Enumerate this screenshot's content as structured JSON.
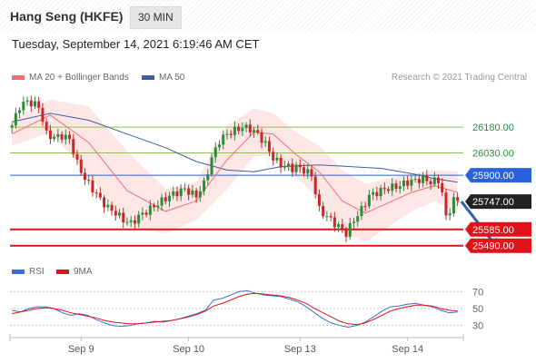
{
  "header": {
    "instrument": "Hang Seng (HKFE)",
    "timeframe": "30 MIN",
    "timestamp": "Tuesday, September 14, 2021 6:19:46 AM CET"
  },
  "legend": {
    "ma20_label": "MA 20 + Bollinger Bands",
    "ma50_label": "MA 50",
    "rsi_label": "RSI",
    "rsi_ma_label": "9MA",
    "credit": "Research © 2021 Trading Central"
  },
  "colors": {
    "ma20": "#ef6f6f",
    "bb_band": "#fde6e6",
    "ma50": "#3f5f9f",
    "candle_up": "#2e8b3d",
    "candle_down": "#c62828",
    "pivot": "#2962d9",
    "support": "#e0121a",
    "resistance": "#8bc34a",
    "last_price": "#222222",
    "rsi": "#3b6fd6",
    "rsi_ma": "#e0121a",
    "arrow": "#2a62b3"
  },
  "chart_data": [
    {
      "type": "candlestick",
      "title": "Hang Seng (HKFE) 30 MIN",
      "x_labels": [
        "Sep 9",
        "Sep 10",
        "Sep 13",
        "Sep 14"
      ],
      "ylim": [
        25420,
        26360
      ],
      "levels": [
        {
          "value": 26180.0,
          "label": "26180.00",
          "role": "resistance"
        },
        {
          "value": 26030.0,
          "label": "26030.00",
          "role": "resistance"
        },
        {
          "value": 25900.0,
          "label": "25900.00",
          "role": "pivot"
        },
        {
          "value": 25747.0,
          "label": "25747.00",
          "role": "last"
        },
        {
          "value": 25585.0,
          "label": "25585.00",
          "role": "support"
        },
        {
          "value": 25490.0,
          "label": "25490.00",
          "role": "support"
        }
      ],
      "close_path": [
        [
          0,
          26190
        ],
        [
          2,
          26300
        ],
        [
          4,
          26330
        ],
        [
          6,
          26310
        ],
        [
          7,
          26300
        ],
        [
          9,
          26140
        ],
        [
          11,
          26120
        ],
        [
          13,
          26130
        ],
        [
          15,
          26110
        ],
        [
          17,
          25970
        ],
        [
          19,
          25880
        ],
        [
          21,
          25820
        ],
        [
          23,
          25760
        ],
        [
          25,
          25710
        ],
        [
          27,
          25680
        ],
        [
          29,
          25640
        ],
        [
          31,
          25620
        ],
        [
          33,
          25660
        ],
        [
          35,
          25690
        ],
        [
          37,
          25720
        ],
        [
          39,
          25750
        ],
        [
          41,
          25780
        ],
        [
          43,
          25800
        ],
        [
          45,
          25820
        ],
        [
          47,
          25790
        ],
        [
          48,
          25780
        ],
        [
          50,
          25850
        ],
        [
          52,
          26000
        ],
        [
          54,
          26100
        ],
        [
          56,
          26140
        ],
        [
          58,
          26160
        ],
        [
          60,
          26180
        ],
        [
          62,
          26170
        ],
        [
          64,
          26140
        ],
        [
          66,
          26080
        ],
        [
          68,
          26000
        ],
        [
          70,
          25960
        ],
        [
          72,
          25950
        ],
        [
          73,
          25940
        ],
        [
          74,
          25950
        ],
        [
          76,
          25930
        ],
        [
          78,
          25900
        ],
        [
          80,
          25700
        ],
        [
          82,
          25660
        ],
        [
          84,
          25620
        ],
        [
          86,
          25580
        ],
        [
          87,
          25560
        ],
        [
          89,
          25640
        ],
        [
          91,
          25700
        ],
        [
          93,
          25780
        ],
        [
          95,
          25800
        ],
        [
          97,
          25820
        ],
        [
          99,
          25830
        ],
        [
          101,
          25840
        ],
        [
          103,
          25860
        ],
        [
          105,
          25870
        ],
        [
          107,
          25880
        ],
        [
          109,
          25860
        ],
        [
          111,
          25870
        ],
        [
          112,
          25800
        ],
        [
          113,
          25650
        ],
        [
          114,
          25700
        ],
        [
          115,
          25760
        ],
        [
          116,
          25747
        ]
      ],
      "ma20": [
        [
          0,
          26140
        ],
        [
          10,
          26250
        ],
        [
          20,
          26090
        ],
        [
          30,
          25810
        ],
        [
          40,
          25690
        ],
        [
          48,
          25750
        ],
        [
          56,
          25990
        ],
        [
          63,
          26150
        ],
        [
          68,
          26140
        ],
        [
          74,
          26020
        ],
        [
          80,
          25920
        ],
        [
          86,
          25750
        ],
        [
          92,
          25680
        ],
        [
          98,
          25740
        ],
        [
          104,
          25800
        ],
        [
          110,
          25840
        ],
        [
          116,
          25800
        ]
      ],
      "bollinger_upper": [
        [
          0,
          26220
        ],
        [
          10,
          26340
        ],
        [
          20,
          26300
        ],
        [
          30,
          26040
        ],
        [
          40,
          25820
        ],
        [
          48,
          25860
        ],
        [
          56,
          26190
        ],
        [
          63,
          26290
        ],
        [
          68,
          26260
        ],
        [
          74,
          26150
        ],
        [
          80,
          26070
        ],
        [
          86,
          25930
        ],
        [
          92,
          25850
        ],
        [
          98,
          25880
        ],
        [
          104,
          25910
        ],
        [
          110,
          25930
        ],
        [
          116,
          25920
        ]
      ],
      "bollinger_lower": [
        [
          0,
          26070
        ],
        [
          10,
          26150
        ],
        [
          20,
          25900
        ],
        [
          30,
          25600
        ],
        [
          40,
          25560
        ],
        [
          48,
          25640
        ],
        [
          56,
          25820
        ],
        [
          63,
          26010
        ],
        [
          68,
          26020
        ],
        [
          74,
          25890
        ],
        [
          80,
          25760
        ],
        [
          86,
          25570
        ],
        [
          92,
          25510
        ],
        [
          98,
          25600
        ],
        [
          104,
          25690
        ],
        [
          110,
          25750
        ],
        [
          116,
          25680
        ]
      ],
      "ma50": [
        [
          0,
          26210
        ],
        [
          10,
          26260
        ],
        [
          20,
          26220
        ],
        [
          30,
          26140
        ],
        [
          40,
          26060
        ],
        [
          48,
          25980
        ],
        [
          56,
          25930
        ],
        [
          63,
          25920
        ],
        [
          70,
          25950
        ],
        [
          80,
          25960
        ],
        [
          88,
          25950
        ],
        [
          96,
          25940
        ],
        [
          104,
          25910
        ],
        [
          110,
          25880
        ],
        [
          116,
          25860
        ]
      ],
      "forecast_arrow": {
        "from": [
          117,
          25747
        ],
        "to": [
          126,
          25490
        ]
      }
    },
    {
      "type": "line",
      "title": "RSI",
      "ylim": [
        20,
        80
      ],
      "yticks": [
        70,
        50,
        30
      ],
      "series": [
        {
          "name": "RSI",
          "color": "#3b6fd6",
          "values": [
            48,
            46,
            50,
            52,
            52,
            50,
            45,
            42,
            44,
            42,
            37,
            33,
            30,
            29,
            30,
            32,
            33,
            35,
            34,
            36,
            38,
            41,
            44,
            48,
            60,
            62,
            66,
            70,
            71,
            68,
            66,
            65,
            64,
            61,
            58,
            52,
            45,
            38,
            33,
            30,
            28,
            30,
            34,
            40,
            47,
            52,
            53,
            55,
            56,
            54,
            52,
            48,
            45,
            46
          ]
        },
        {
          "name": "9MA",
          "color": "#e0121a",
          "values": [
            44,
            46,
            48,
            50,
            51,
            50,
            48,
            45,
            43,
            41,
            39,
            36,
            34,
            33,
            32,
            32,
            33,
            34,
            35,
            36,
            38,
            40,
            43,
            47,
            53,
            56,
            60,
            64,
            67,
            68,
            67,
            66,
            65,
            63,
            60,
            56,
            50,
            45,
            40,
            35,
            32,
            31,
            33,
            37,
            42,
            47,
            50,
            52,
            54,
            54,
            53,
            50,
            48,
            47
          ]
        }
      ]
    }
  ]
}
